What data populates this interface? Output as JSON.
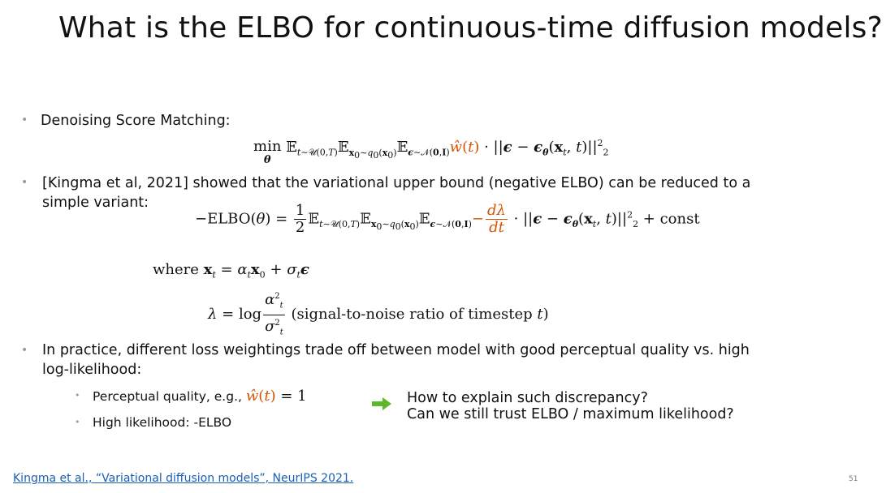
{
  "slide": {
    "title": "What is the ELBO for continuous-time diffusion models?",
    "bullet1": "Denoising Score Matching:",
    "bullet2_line1": "[Kingma et al, 2021] showed that the variational upper bound (negative ELBO) can be reduced to a",
    "bullet2_line2": "simple variant:",
    "where_label": "where",
    "snr_text": "(signal-to-noise ratio of timestep",
    "bullet3_line1": "In practice, different loss weightings trade off between model with good perceptual quality vs. high",
    "bullet3_line2": "log-likelihood:",
    "sub1": "Perceptual quality, e.g.,",
    "sub2": "High likelihood: -ELBO",
    "question1": "How to explain such discrepancy?",
    "question2": "Can we still trust ELBO / maximum likelihood?",
    "reference": "Kingma et al., “Variational diffusion models”, NeurIPS 2021.",
    "page_number": "51"
  },
  "colors": {
    "accent": "#d35400",
    "arrow": "#5cb82a",
    "link": "#1a5fb4"
  }
}
